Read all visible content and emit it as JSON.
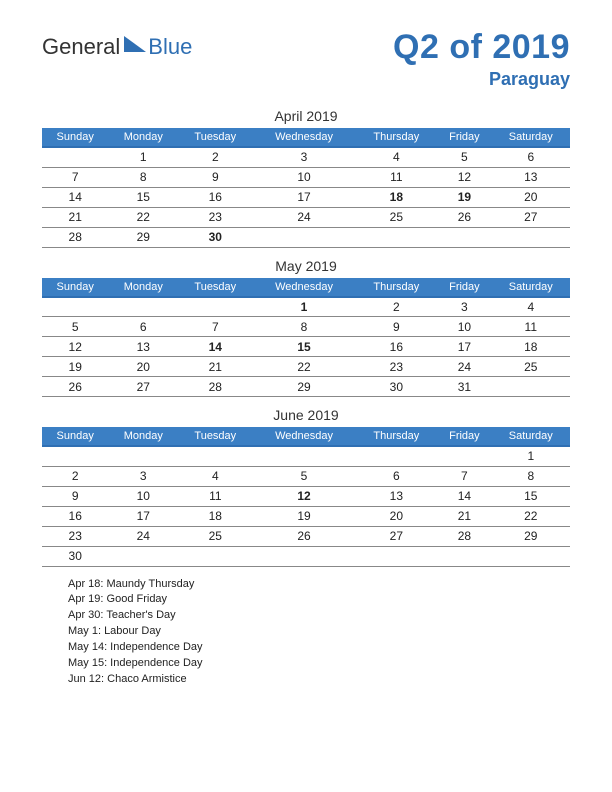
{
  "logo": {
    "part1": "General",
    "part2": "Blue"
  },
  "title": "Q2 of 2019",
  "subtitle": "Paraguay",
  "colors": {
    "brand": "#2f6fb3",
    "header_bg": "#3b7fc4",
    "holiday": "#c0392b",
    "rule": "#888888",
    "text": "#222222",
    "bg": "#ffffff"
  },
  "weekdays": [
    "Sunday",
    "Monday",
    "Tuesday",
    "Wednesday",
    "Thursday",
    "Friday",
    "Saturday"
  ],
  "months": [
    {
      "title": "April 2019",
      "weeks": [
        [
          "",
          "1",
          "2",
          "3",
          "4",
          "5",
          "6"
        ],
        [
          "7",
          "8",
          "9",
          "10",
          "11",
          "12",
          "13"
        ],
        [
          "14",
          "15",
          "16",
          "17",
          "18",
          "19",
          "20"
        ],
        [
          "21",
          "22",
          "23",
          "24",
          "25",
          "26",
          "27"
        ],
        [
          "28",
          "29",
          "30",
          "",
          "",
          "",
          ""
        ]
      ],
      "holidays": [
        "18",
        "19",
        "30"
      ]
    },
    {
      "title": "May 2019",
      "weeks": [
        [
          "",
          "",
          "",
          "1",
          "2",
          "3",
          "4"
        ],
        [
          "5",
          "6",
          "7",
          "8",
          "9",
          "10",
          "11"
        ],
        [
          "12",
          "13",
          "14",
          "15",
          "16",
          "17",
          "18"
        ],
        [
          "19",
          "20",
          "21",
          "22",
          "23",
          "24",
          "25"
        ],
        [
          "26",
          "27",
          "28",
          "29",
          "30",
          "31",
          ""
        ]
      ],
      "holidays": [
        "1",
        "14",
        "15"
      ]
    },
    {
      "title": "June 2019",
      "weeks": [
        [
          "",
          "",
          "",
          "",
          "",
          "",
          "1"
        ],
        [
          "2",
          "3",
          "4",
          "5",
          "6",
          "7",
          "8"
        ],
        [
          "9",
          "10",
          "11",
          "12",
          "13",
          "14",
          "15"
        ],
        [
          "16",
          "17",
          "18",
          "19",
          "20",
          "21",
          "22"
        ],
        [
          "23",
          "24",
          "25",
          "26",
          "27",
          "28",
          "29"
        ],
        [
          "30",
          "",
          "",
          "",
          "",
          "",
          ""
        ]
      ],
      "holidays": [
        "12"
      ]
    }
  ],
  "holiday_list": [
    "Apr 18: Maundy Thursday",
    "Apr 19: Good Friday",
    "Apr 30: Teacher's Day",
    "May 1: Labour Day",
    "May 14: Independence Day",
    "May 15: Independence Day",
    "Jun 12: Chaco Armistice"
  ]
}
